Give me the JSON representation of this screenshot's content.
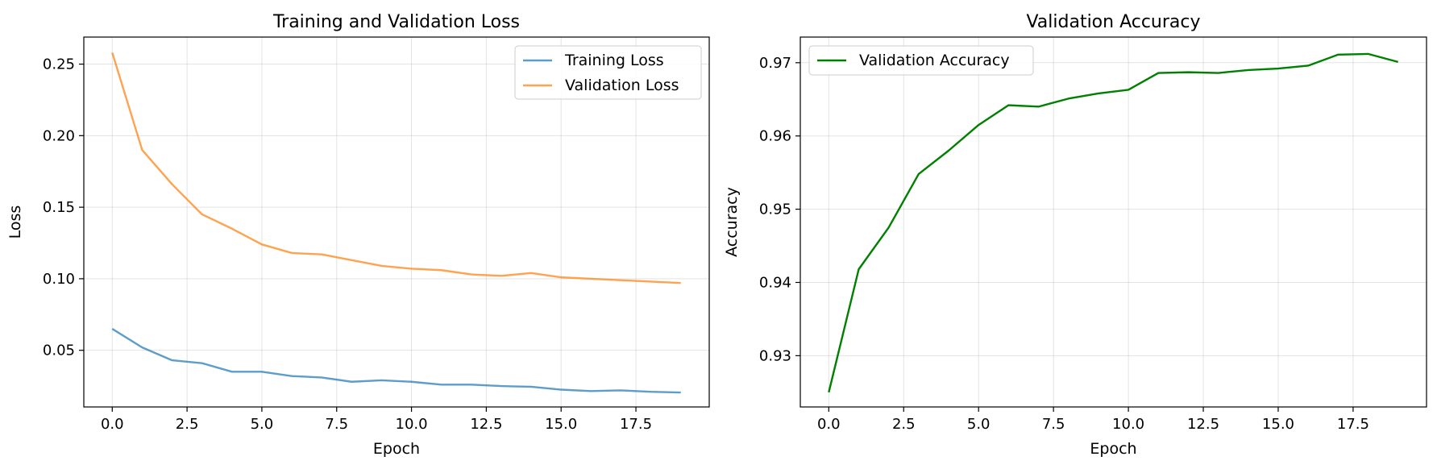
{
  "chart_data": [
    {
      "type": "line",
      "title": "Training and Validation Loss",
      "xlabel": "Epoch",
      "ylabel": "Loss",
      "xlim": [
        -0.95,
        19.95
      ],
      "ylim": [
        0.0104,
        0.2689
      ],
      "xticks": [
        0,
        2.5,
        5,
        7.5,
        10,
        12.5,
        15,
        17.5
      ],
      "xtick_labels": [
        "0.0",
        "2.5",
        "5.0",
        "7.5",
        "10.0",
        "12.5",
        "15.0",
        "17.5"
      ],
      "yticks": [
        0.05,
        0.1,
        0.15,
        0.2,
        0.25
      ],
      "ytick_labels": [
        "0.05",
        "0.10",
        "0.15",
        "0.20",
        "0.25"
      ],
      "grid": true,
      "legend": "upper-right",
      "x": [
        0,
        1,
        2,
        3,
        4,
        5,
        6,
        7,
        8,
        9,
        10,
        11,
        12,
        13,
        14,
        15,
        16,
        17,
        18,
        19
      ],
      "series": [
        {
          "name": "Training Loss",
          "color": "#1f77b4",
          "values": [
            0.065,
            0.052,
            0.043,
            0.041,
            0.035,
            0.035,
            0.032,
            0.031,
            0.028,
            0.029,
            0.028,
            0.026,
            0.026,
            0.025,
            0.0245,
            0.0225,
            0.0215,
            0.022,
            0.021,
            0.0205
          ]
        },
        {
          "name": "Validation Loss",
          "color": "#ff7f0e",
          "values": [
            0.258,
            0.19,
            0.166,
            0.145,
            0.135,
            0.124,
            0.118,
            0.117,
            0.113,
            0.109,
            0.107,
            0.106,
            0.103,
            0.102,
            0.104,
            0.101,
            0.1,
            0.099,
            0.098,
            0.097
          ]
        }
      ]
    },
    {
      "type": "line",
      "title": "Validation Accuracy",
      "xlabel": "Epoch",
      "ylabel": "Accuracy",
      "xlim": [
        -0.95,
        19.95
      ],
      "ylim": [
        0.923,
        0.9735
      ],
      "xticks": [
        0,
        2.5,
        5,
        7.5,
        10,
        12.5,
        15,
        17.5
      ],
      "xtick_labels": [
        "0.0",
        "2.5",
        "5.0",
        "7.5",
        "10.0",
        "12.5",
        "15.0",
        "17.5"
      ],
      "yticks": [
        0.93,
        0.94,
        0.95,
        0.96,
        0.97
      ],
      "ytick_labels": [
        "0.93",
        "0.94",
        "0.95",
        "0.96",
        "0.97"
      ],
      "grid": true,
      "legend": "upper-left",
      "x": [
        0,
        1,
        2,
        3,
        4,
        5,
        6,
        7,
        8,
        9,
        10,
        11,
        12,
        13,
        14,
        15,
        16,
        17,
        18,
        19
      ],
      "series": [
        {
          "name": "Validation Accuracy",
          "color": "#008000",
          "values": [
            0.925,
            0.9418,
            0.9475,
            0.9548,
            0.958,
            0.9615,
            0.9642,
            0.964,
            0.9651,
            0.9658,
            0.9663,
            0.9686,
            0.9687,
            0.9686,
            0.969,
            0.9692,
            0.9696,
            0.9711,
            0.9712,
            0.9701
          ]
        }
      ]
    }
  ]
}
